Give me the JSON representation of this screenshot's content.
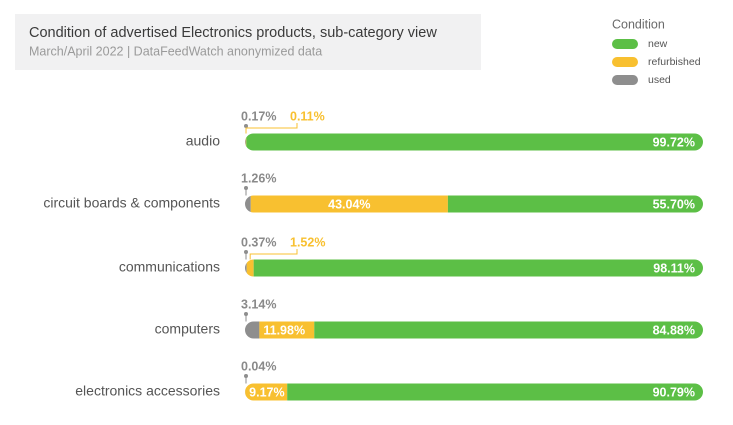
{
  "chart_data": {
    "type": "stacked-bar-horizontal",
    "title": "Condition of advertised Electronics products, sub-category view",
    "subtitle": "March/April 2022 | DataFeedWatch anonymized data",
    "legend_title": "Condition",
    "legend": "top-right",
    "categories": [
      "audio",
      "circuit boards & components",
      "communications",
      "computers",
      "electronics accessories"
    ],
    "xlim": [
      0,
      100
    ],
    "series": [
      {
        "name": "used",
        "color": "#8e8e8e",
        "values": [
          0.17,
          1.26,
          0.37,
          3.14,
          0.04
        ],
        "value_labels": [
          "0.17%",
          "1.26%",
          "0.37%",
          "3.14%",
          "0.04%"
        ]
      },
      {
        "name": "refurbished",
        "color": "#f8c030",
        "values": [
          0.11,
          43.04,
          1.52,
          11.98,
          9.17
        ],
        "value_labels": [
          "0.11%",
          "43.04%",
          "1.52%",
          "11.98%",
          "9.17%"
        ]
      },
      {
        "name": "new",
        "color": "#5cbf46",
        "values": [
          99.72,
          55.7,
          98.11,
          84.88,
          90.79
        ],
        "value_labels": [
          "99.72%",
          "55.70%",
          "98.11%",
          "84.88%",
          "90.79%"
        ]
      }
    ],
    "legend_order": [
      "new",
      "refurbished",
      "used"
    ]
  }
}
